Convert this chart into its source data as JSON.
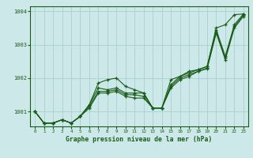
{
  "bg_color": "#cce8e8",
  "grid_color": "#aacfcf",
  "line_color": "#1a5c1a",
  "xlabel": "Graphe pression niveau de la mer (hPa)",
  "ylim": [
    1000.55,
    1004.15
  ],
  "xlim": [
    -0.5,
    23.5
  ],
  "yticks": [
    1001,
    1002,
    1003,
    1004
  ],
  "xticks": [
    0,
    1,
    2,
    3,
    4,
    5,
    6,
    7,
    8,
    9,
    10,
    11,
    12,
    13,
    14,
    15,
    16,
    17,
    18,
    19,
    20,
    21,
    22,
    23
  ],
  "series": [
    [
      1001.0,
      1000.65,
      1000.65,
      1000.75,
      1000.65,
      1000.85,
      1001.2,
      1001.85,
      1001.95,
      1002.0,
      1001.75,
      1001.65,
      1001.55,
      1001.1,
      1001.1,
      1001.95,
      1002.05,
      1002.2,
      1002.25,
      1002.35,
      1003.5,
      1003.6,
      1003.9,
      1003.92
    ],
    [
      1001.0,
      1000.65,
      1000.65,
      1000.75,
      1000.65,
      1000.85,
      1001.2,
      1001.7,
      1001.65,
      1001.7,
      1001.55,
      1001.55,
      1001.55,
      1001.1,
      1001.1,
      1001.8,
      1002.05,
      1002.15,
      1002.25,
      1002.35,
      1003.45,
      1002.65,
      1003.6,
      1003.92
    ],
    [
      1001.0,
      1000.65,
      1000.65,
      1000.75,
      1000.65,
      1000.85,
      1001.15,
      1001.6,
      1001.6,
      1001.65,
      1001.5,
      1001.5,
      1001.45,
      1001.1,
      1001.1,
      1001.75,
      1002.0,
      1002.1,
      1002.2,
      1002.3,
      1003.4,
      1002.6,
      1003.55,
      1003.88
    ],
    [
      1001.0,
      1000.65,
      1000.65,
      1000.75,
      1000.65,
      1000.85,
      1001.1,
      1001.55,
      1001.55,
      1001.6,
      1001.45,
      1001.4,
      1001.4,
      1001.1,
      1001.1,
      1001.7,
      1001.95,
      1002.05,
      1002.2,
      1002.28,
      1003.35,
      1002.55,
      1003.5,
      1003.85
    ]
  ]
}
